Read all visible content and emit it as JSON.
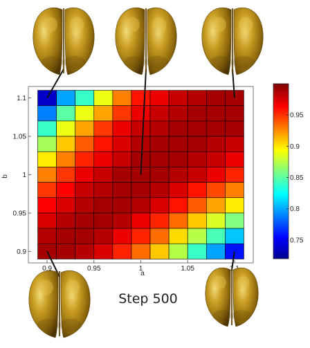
{
  "chart_data": {
    "type": "heatmap",
    "title": "",
    "xlabel": "a",
    "ylabel": "b",
    "x": [
      0.9,
      0.92,
      0.94,
      0.96,
      0.98,
      1.0,
      1.02,
      1.04,
      1.06,
      1.08,
      1.1
    ],
    "y": [
      1.1,
      1.08,
      1.06,
      1.04,
      1.02,
      1.0,
      0.98,
      0.96,
      0.94,
      0.92,
      0.9
    ],
    "xlim": [
      0.88,
      1.12
    ],
    "ylim": [
      0.885,
      1.115
    ],
    "xticks": [
      0.9,
      0.95,
      1,
      1.05,
      1.1
    ],
    "xtick_labels": [
      "0.9",
      "0.95",
      "1",
      "1.05",
      "1.1"
    ],
    "yticks": [
      0.9,
      0.95,
      1,
      1.05,
      1.1
    ],
    "ytick_labels": [
      "0.9",
      "0.95",
      "1",
      "1.05",
      "1.1"
    ],
    "values": [
      [
        0.74,
        0.8,
        0.84,
        0.89,
        0.93,
        0.96,
        0.97,
        0.98,
        0.985,
        0.99,
        0.99
      ],
      [
        0.79,
        0.85,
        0.89,
        0.92,
        0.95,
        0.97,
        0.98,
        0.985,
        0.99,
        0.99,
        0.99
      ],
      [
        0.84,
        0.89,
        0.92,
        0.95,
        0.97,
        0.98,
        0.985,
        0.99,
        0.99,
        0.99,
        0.99
      ],
      [
        0.87,
        0.91,
        0.94,
        0.96,
        0.975,
        0.985,
        0.99,
        0.99,
        0.99,
        0.985,
        0.98
      ],
      [
        0.9,
        0.93,
        0.955,
        0.97,
        0.98,
        0.99,
        0.99,
        0.99,
        0.985,
        0.98,
        0.97
      ],
      [
        0.93,
        0.95,
        0.97,
        0.98,
        0.99,
        0.99,
        0.99,
        0.985,
        0.98,
        0.97,
        0.955
      ],
      [
        0.95,
        0.965,
        0.98,
        0.985,
        0.99,
        0.99,
        0.985,
        0.975,
        0.96,
        0.945,
        0.93
      ],
      [
        0.965,
        0.975,
        0.985,
        0.99,
        0.99,
        0.985,
        0.975,
        0.96,
        0.94,
        0.92,
        0.9
      ],
      [
        0.975,
        0.985,
        0.99,
        0.99,
        0.985,
        0.97,
        0.955,
        0.935,
        0.91,
        0.885,
        0.86
      ],
      [
        0.985,
        0.99,
        0.99,
        0.985,
        0.97,
        0.955,
        0.935,
        0.905,
        0.875,
        0.845,
        0.81
      ],
      [
        0.99,
        0.99,
        0.985,
        0.975,
        0.955,
        0.935,
        0.91,
        0.875,
        0.84,
        0.8,
        0.76
      ]
    ],
    "colorbar": {
      "min": 0.72,
      "max": 1.0,
      "ticks": [
        0.75,
        0.8,
        0.85,
        0.9,
        0.95
      ],
      "tick_labels": [
        "0.75",
        "0.8",
        "0.85",
        "0.9",
        "0.95"
      ],
      "colormap": "jet",
      "placement": "right"
    },
    "grid": false,
    "annotations": [
      "Step 500"
    ]
  },
  "annotation": {
    "step_label": "Step 500"
  },
  "brain_renderings": [
    {
      "name": "brain-rendering-top-left",
      "attached_to": {
        "a": 0.9,
        "b": 1.1
      }
    },
    {
      "name": "brain-rendering-top-center",
      "attached_to": {
        "a": 1.0,
        "b": 1.0
      }
    },
    {
      "name": "brain-rendering-top-right",
      "attached_to": {
        "a": 1.1,
        "b": 1.1
      }
    },
    {
      "name": "brain-rendering-bottom-left",
      "attached_to": {
        "a": 0.9,
        "b": 0.9
      }
    },
    {
      "name": "brain-rendering-bottom-right",
      "attached_to": {
        "a": 1.1,
        "b": 0.9
      }
    }
  ],
  "colors": {
    "brain_base": "#a37b10",
    "brain_light": "#e4c04e",
    "brain_dark": "#5e4206",
    "leader_line": "#111111"
  }
}
